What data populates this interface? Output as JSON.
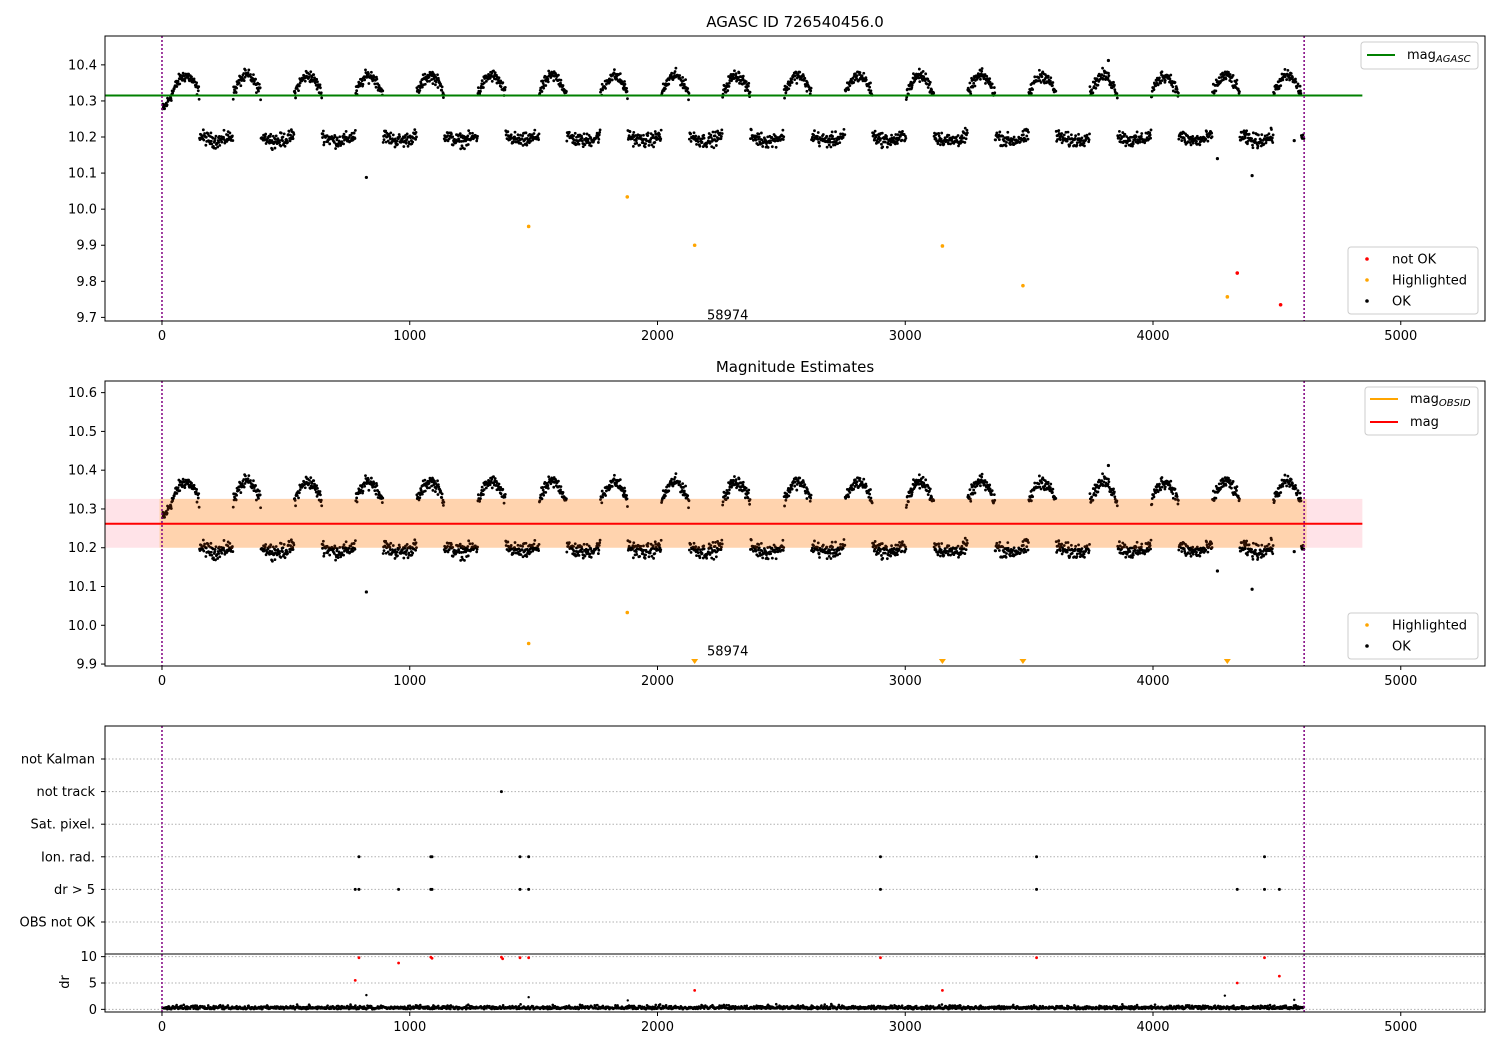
{
  "chart_data": [
    {
      "type": "scatter",
      "title": "AGASC ID 726540456.0",
      "xlim": [
        -230,
        5340
      ],
      "ylim": [
        9.69,
        10.48
      ],
      "xticks": [
        0,
        1000,
        2000,
        3000,
        4000,
        5000
      ],
      "yticks": [
        9.7,
        9.8,
        9.9,
        10.0,
        10.1,
        10.2,
        10.3,
        10.4
      ],
      "vlines": [
        0,
        4610
      ],
      "reference_line": {
        "name": "mag_AGASC",
        "label": "mag",
        "subscript": "AGASC",
        "value": 10.315,
        "x_range": [
          -230,
          4845
        ],
        "color": "#008000"
      },
      "annotation": {
        "text": "58974",
        "x": 2200,
        "y": 9.705
      },
      "legend_lines": [
        {
          "label": "mag",
          "subscript": "AGASC",
          "color": "#008000"
        }
      ],
      "legend_points": [
        {
          "label": "not OK",
          "color": "#ff0000"
        },
        {
          "label": "Highlighted",
          "color": "#ffa500"
        },
        {
          "label": "OK",
          "color": "#000000"
        }
      ],
      "series": [
        {
          "name": "OK",
          "color": "#000000",
          "description": "dense periodic light curve oscillating between ~10.17 and ~10.37 (period ~250) across x 0 to 4610, plus outliers",
          "outliers": [
            {
              "x": 825,
              "y": 10.088
            },
            {
              "x": 4400,
              "y": 10.093
            },
            {
              "x": 4260,
              "y": 10.14
            },
            {
              "x": 4570,
              "y": 10.19
            },
            {
              "x": 3820,
              "y": 10.412
            }
          ]
        },
        {
          "name": "Highlighted",
          "color": "#ffa500",
          "points": [
            {
              "x": 1480,
              "y": 9.952
            },
            {
              "x": 1878,
              "y": 10.034
            },
            {
              "x": 2150,
              "y": 9.9
            },
            {
              "x": 3150,
              "y": 9.898
            },
            {
              "x": 3475,
              "y": 9.788
            },
            {
              "x": 4300,
              "y": 9.757
            }
          ]
        },
        {
          "name": "not OK",
          "color": "#ff0000",
          "points": [
            {
              "x": 4340,
              "y": 9.823
            },
            {
              "x": 4515,
              "y": 9.735
            }
          ]
        }
      ]
    },
    {
      "type": "scatter",
      "title": "Magnitude Estimates",
      "xlim": [
        -230,
        5340
      ],
      "ylim": [
        9.895,
        10.63
      ],
      "xticks": [
        0,
        1000,
        2000,
        3000,
        4000,
        5000
      ],
      "yticks": [
        9.9,
        10.0,
        10.1,
        10.2,
        10.3,
        10.4,
        10.5,
        10.6
      ],
      "vlines": [
        0,
        4610
      ],
      "mean_line": {
        "name": "mag",
        "value": 10.262,
        "x_range": [
          -230,
          4845
        ],
        "color": "#ff0000"
      },
      "band_wide": {
        "range": [
          10.2,
          10.326
        ],
        "x_range": [
          -230,
          4845
        ],
        "color": "#ffc0cb"
      },
      "band_obsid": {
        "range": [
          10.2,
          10.326
        ],
        "x_range": [
          -10,
          4620
        ],
        "color": "#ffa500"
      },
      "annotation": {
        "text": "58974",
        "x": 2200,
        "y": 9.932
      },
      "legend_lines": [
        {
          "label": "mag",
          "subscript": "OBSID",
          "color": "#ffa500"
        },
        {
          "label": "mag",
          "subscript": "",
          "color": "#ff0000"
        }
      ],
      "legend_points": [
        {
          "label": "Highlighted",
          "color": "#ffa500"
        },
        {
          "label": "OK",
          "color": "#000000"
        }
      ],
      "series": [
        {
          "name": "OK",
          "color": "#000000",
          "description": "same light curve as top panel",
          "outliers": [
            {
              "x": 825,
              "y": 10.086
            },
            {
              "x": 4400,
              "y": 10.093
            },
            {
              "x": 4260,
              "y": 10.14
            },
            {
              "x": 4570,
              "y": 10.19
            },
            {
              "x": 3820,
              "y": 10.412
            }
          ]
        },
        {
          "name": "Highlighted",
          "color": "#ffa500",
          "points": [
            {
              "x": 1480,
              "y": 9.953
            },
            {
              "x": 1878,
              "y": 10.033
            }
          ]
        },
        {
          "name": "Highlighted (off-scale, below axis)",
          "color": "#ffa500",
          "marker": "triangle-down",
          "points": [
            {
              "x": 2150,
              "y": 9.9
            },
            {
              "x": 3150,
              "y": 9.9
            },
            {
              "x": 3475,
              "y": 9.9
            },
            {
              "x": 4300,
              "y": 9.9
            }
          ]
        }
      ]
    },
    {
      "type": "scatter",
      "title": "",
      "xlim": [
        -230,
        5340
      ],
      "category_axis": [
        "not Kalman",
        "not track",
        "Sat. pixel.",
        "Ion. rad.",
        "dr > 5",
        "OBS not OK"
      ],
      "vlines": [
        0,
        4610
      ],
      "flags": [
        {
          "category": "not track",
          "x": [
            1370
          ]
        },
        {
          "category": "Ion. rad.",
          "x": [
            795,
            1085,
            1090,
            1445,
            1480,
            2900,
            3530,
            4450
          ]
        },
        {
          "category": "dr > 5",
          "x": [
            780,
            795,
            955,
            1085,
            1090,
            1445,
            1480,
            2900,
            3530,
            4340,
            4450,
            4510
          ]
        }
      ],
      "dr_subplot": {
        "ylabel": "dr",
        "ylim": [
          -0.5,
          10.5
        ],
        "yticks": [
          0,
          5,
          10
        ],
        "xticks": [
          0,
          1000,
          2000,
          3000,
          4000,
          5000
        ],
        "series": [
          {
            "name": "dr",
            "color": "#000000",
            "description": "dense noise near 0 (0 to ~1.5) across x 0 to 4610",
            "outliers": [
              {
                "x": 825,
                "y": 2.7
              },
              {
                "x": 1480,
                "y": 2.3
              },
              {
                "x": 4290,
                "y": 2.6
              },
              {
                "x": 4570,
                "y": 1.8
              },
              {
                "x": 1880,
                "y": 1.7
              }
            ]
          },
          {
            "name": "dr > 5 (clipped at 10)",
            "color": "#ff0000",
            "points": [
              {
                "x": 780,
                "y": 5.5
              },
              {
                "x": 795,
                "y": 9.8
              },
              {
                "x": 955,
                "y": 8.8
              },
              {
                "x": 1085,
                "y": 9.9
              },
              {
                "x": 1090,
                "y": 9.7
              },
              {
                "x": 1370,
                "y": 9.9
              },
              {
                "x": 1375,
                "y": 9.6
              },
              {
                "x": 1445,
                "y": 9.8
              },
              {
                "x": 1480,
                "y": 9.8
              },
              {
                "x": 2150,
                "y": 3.6
              },
              {
                "x": 2900,
                "y": 9.8
              },
              {
                "x": 3150,
                "y": 3.6
              },
              {
                "x": 3530,
                "y": 9.8
              },
              {
                "x": 4340,
                "y": 5.0
              },
              {
                "x": 4450,
                "y": 9.8
              },
              {
                "x": 4510,
                "y": 6.3
              }
            ]
          }
        ]
      }
    }
  ]
}
